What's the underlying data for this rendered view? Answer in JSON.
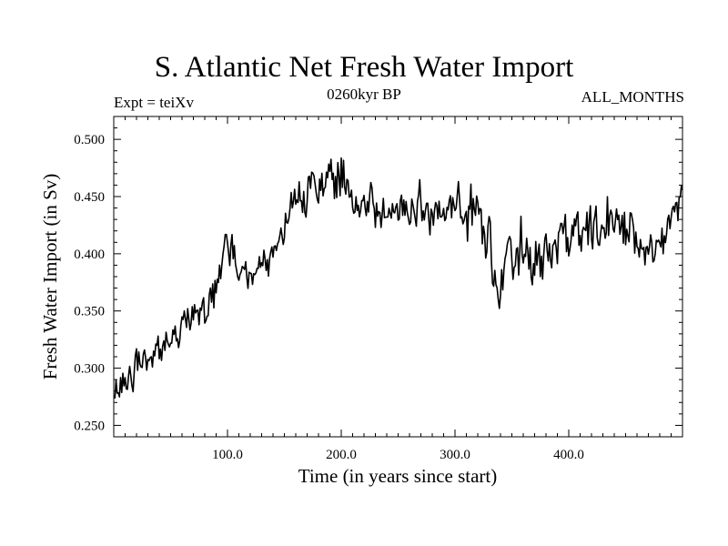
{
  "header": {
    "title": "S. Atlantic Net Fresh Water Import",
    "subtitle": "0260kyr BP",
    "expt_label": "Expt = teiXv",
    "months_label": "ALL_MONTHS"
  },
  "colors": {
    "line": "#000000",
    "background": "#ffffff"
  },
  "chart_data": {
    "type": "line",
    "title": "S. Atlantic Net Fresh Water Import",
    "subtitle": "0260kyr BP",
    "xlabel": "Time (in years since start)",
    "ylabel": "Fresh Water Import (in Sv)",
    "xlim": [
      0,
      500
    ],
    "ylim": [
      0.24,
      0.52
    ],
    "x_ticks": [
      100,
      200,
      300,
      400
    ],
    "x_tick_labels": [
      "100.0",
      "200.0",
      "300.0",
      "400.0"
    ],
    "y_ticks": [
      0.25,
      0.3,
      0.35,
      0.4,
      0.45,
      0.5
    ],
    "y_tick_labels": [
      "0.250",
      "0.300",
      "0.350",
      "0.400",
      "0.450",
      "0.500"
    ],
    "grid": false,
    "series": [
      {
        "name": "net_fresh_water_import",
        "x_start": 1,
        "x_step": 1,
        "trend_x": [
          0,
          10,
          25,
          40,
          55,
          70,
          80,
          90,
          95,
          100,
          110,
          120,
          130,
          140,
          150,
          160,
          170,
          180,
          190,
          200,
          210,
          220,
          240,
          260,
          280,
          300,
          320,
          335,
          345,
          360,
          380,
          400,
          420,
          440,
          460,
          480,
          500
        ],
        "trend_y": [
          0.275,
          0.285,
          0.305,
          0.315,
          0.33,
          0.355,
          0.35,
          0.37,
          0.395,
          0.41,
          0.39,
          0.385,
          0.385,
          0.4,
          0.43,
          0.45,
          0.455,
          0.46,
          0.465,
          0.47,
          0.45,
          0.44,
          0.44,
          0.445,
          0.44,
          0.44,
          0.43,
          0.39,
          0.385,
          0.405,
          0.4,
          0.41,
          0.415,
          0.425,
          0.42,
          0.405,
          0.45
        ],
        "noise_amplitude": [
          0.012,
          0.013,
          0.013,
          0.013,
          0.013,
          0.014,
          0.014,
          0.014,
          0.014,
          0.014,
          0.014,
          0.014,
          0.014,
          0.014,
          0.016,
          0.016,
          0.016,
          0.016,
          0.016,
          0.018,
          0.018,
          0.018,
          0.018,
          0.018,
          0.018,
          0.018,
          0.02,
          0.022,
          0.022,
          0.022,
          0.022,
          0.02,
          0.02,
          0.022,
          0.02,
          0.02,
          0.02
        ],
        "seed": 260
      }
    ]
  }
}
